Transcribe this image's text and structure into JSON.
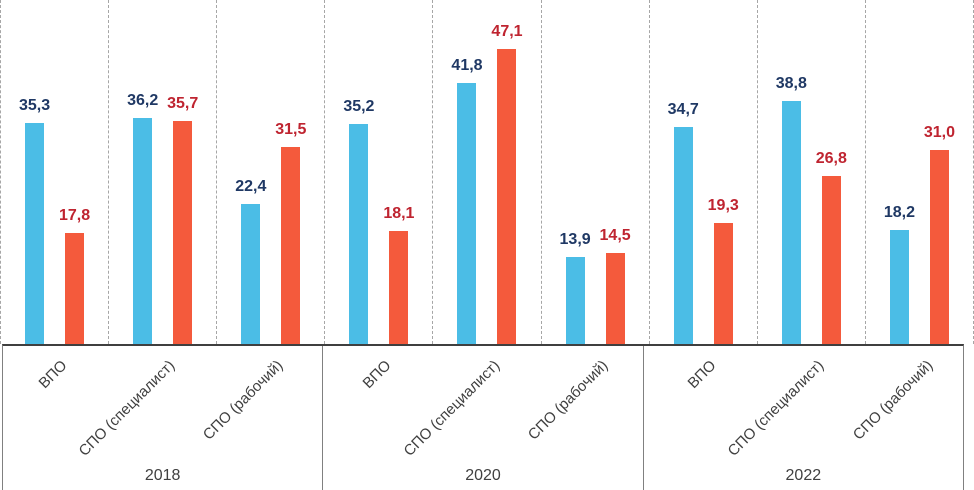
{
  "chart_data": {
    "type": "bar",
    "title": "",
    "legend": "none",
    "ylim": [
      0,
      55
    ],
    "grid": "dashed vertical separators between categories",
    "axis_labels_rotation_deg": -45,
    "decimal_separator": ",",
    "series": [
      {
        "key": "blue",
        "bar_color": "#4bbde6",
        "label_color": "#1f3864"
      },
      {
        "key": "red",
        "bar_color": "#f45a3c",
        "label_color": "#bf2430"
      }
    ],
    "groups": [
      {
        "year": "2018",
        "categories": [
          {
            "label": "ВПО",
            "values": [
              35.3,
              17.8
            ],
            "value_labels": [
              "35,3",
              "17,8"
            ]
          },
          {
            "label": "СПО (специалист)",
            "values": [
              36.2,
              35.7
            ],
            "value_labels": [
              "36,2",
              "35,7"
            ]
          },
          {
            "label": "СПО (рабочий)",
            "values": [
              22.4,
              31.5
            ],
            "value_labels": [
              "22,4",
              "31,5"
            ]
          }
        ]
      },
      {
        "year": "2020",
        "categories": [
          {
            "label": "ВПО",
            "values": [
              35.2,
              18.1
            ],
            "value_labels": [
              "35,2",
              "18,1"
            ]
          },
          {
            "label": "СПО (специалист)",
            "values": [
              41.8,
              47.1
            ],
            "value_labels": [
              "41,8",
              "47,1"
            ]
          },
          {
            "label": "СПО (рабочий)",
            "values": [
              13.9,
              14.5
            ],
            "value_labels": [
              "13,9",
              "14,5"
            ]
          }
        ]
      },
      {
        "year": "2022",
        "categories": [
          {
            "label": "ВПО",
            "values": [
              34.7,
              19.3
            ],
            "value_labels": [
              "34,7",
              "19,3"
            ]
          },
          {
            "label": "СПО (специалист)",
            "values": [
              38.8,
              26.8
            ],
            "value_labels": [
              "38,8",
              "26,8"
            ]
          },
          {
            "label": "СПО (рабочий)",
            "values": [
              18.2,
              31.0
            ],
            "value_labels": [
              "18,2",
              "31,0"
            ]
          }
        ]
      }
    ],
    "style_colors": {
      "dashed_gridline": "#a6a6a6",
      "axis_line": "#3f3f3f",
      "box_border": "#808080",
      "tick_text": "#404040"
    }
  }
}
